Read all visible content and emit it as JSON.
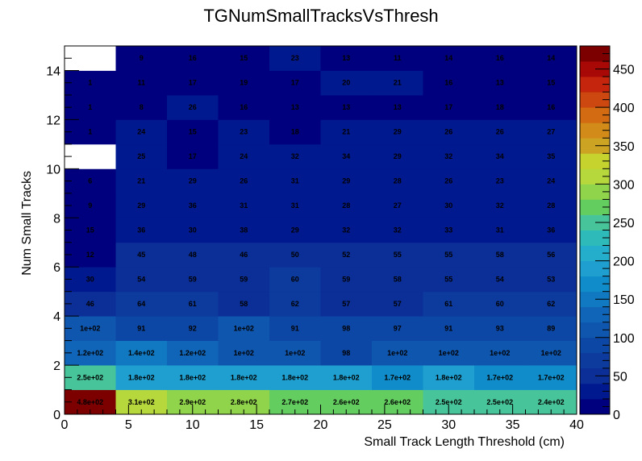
{
  "chart_data": {
    "type": "heatmap",
    "title": "TGNumSmallTracksVsThresh",
    "xlabel": "Small Track Length Threshold (cm)",
    "ylabel": "Num Small Tracks",
    "xlim": [
      0,
      40
    ],
    "ylim": [
      0,
      15
    ],
    "x_bin_edges": [
      0,
      4,
      8,
      12,
      16,
      20,
      24,
      28,
      32,
      36,
      40
    ],
    "y_bin_width": 1,
    "x_ticks": [
      0,
      5,
      10,
      15,
      20,
      25,
      30,
      35,
      40
    ],
    "y_ticks": [
      0,
      2,
      4,
      6,
      8,
      10,
      12,
      14
    ],
    "zlim": [
      0,
      480
    ],
    "z_ticks": [
      0,
      50,
      100,
      150,
      200,
      250,
      300,
      350,
      400,
      450
    ],
    "values": [
      [
        480,
        310,
        290,
        280,
        270,
        260,
        260,
        250,
        250,
        240
      ],
      [
        250,
        180,
        180,
        180,
        180,
        180,
        170,
        180,
        170,
        170
      ],
      [
        120,
        140,
        120,
        100,
        100,
        98,
        100,
        100,
        100,
        100
      ],
      [
        100,
        91,
        92,
        100,
        91,
        98,
        97,
        91,
        93,
        89
      ],
      [
        46,
        64,
        61,
        58,
        62,
        57,
        57,
        61,
        60,
        62
      ],
      [
        30,
        54,
        59,
        59,
        60,
        59,
        58,
        55,
        54,
        53
      ],
      [
        12,
        45,
        48,
        46,
        50,
        52,
        55,
        55,
        58,
        56
      ],
      [
        15,
        36,
        30,
        38,
        29,
        32,
        32,
        33,
        31,
        36
      ],
      [
        9,
        29,
        36,
        31,
        31,
        28,
        27,
        30,
        32,
        28
      ],
      [
        6,
        21,
        29,
        26,
        31,
        29,
        28,
        26,
        23,
        24
      ],
      [
        0,
        25,
        17,
        24,
        32,
        34,
        29,
        32,
        34,
        35
      ],
      [
        1,
        24,
        15,
        23,
        18,
        21,
        29,
        26,
        26,
        27
      ],
      [
        1,
        8,
        26,
        16,
        13,
        13,
        13,
        17,
        18,
        16
      ],
      [
        1,
        11,
        17,
        19,
        17,
        20,
        21,
        16,
        13,
        15
      ],
      [
        0,
        9,
        16,
        15,
        23,
        13,
        11,
        14,
        16,
        14
      ]
    ],
    "labels": [
      [
        "4.8e+02",
        "3.1e+02",
        "2.9e+02",
        "2.8e+02",
        "2.7e+02",
        "2.6e+02",
        "2.6e+02",
        "2.5e+02",
        "2.5e+02",
        "2.4e+02"
      ],
      [
        "2.5e+02",
        "1.8e+02",
        "1.8e+02",
        "1.8e+02",
        "1.8e+02",
        "1.8e+02",
        "1.7e+02",
        "1.8e+02",
        "1.7e+02",
        "1.7e+02"
      ],
      [
        "1.2e+02",
        "1.4e+02",
        "1.2e+02",
        "1e+02",
        "1e+02",
        "98",
        "1e+02",
        "1e+02",
        "1e+02",
        "1e+02"
      ],
      [
        "1e+02",
        "91",
        "92",
        "1e+02",
        "91",
        "98",
        "97",
        "91",
        "93",
        "89"
      ],
      [
        "46",
        "64",
        "61",
        "58",
        "62",
        "57",
        "57",
        "61",
        "60",
        "62"
      ],
      [
        "30",
        "54",
        "59",
        "59",
        "60",
        "59",
        "58",
        "55",
        "54",
        "53"
      ],
      [
        "12",
        "45",
        "48",
        "46",
        "50",
        "52",
        "55",
        "55",
        "58",
        "56"
      ],
      [
        "15",
        "36",
        "30",
        "38",
        "29",
        "32",
        "32",
        "33",
        "31",
        "36"
      ],
      [
        "9",
        "29",
        "36",
        "31",
        "31",
        "28",
        "27",
        "30",
        "32",
        "28"
      ],
      [
        "6",
        "21",
        "29",
        "26",
        "31",
        "29",
        "28",
        "26",
        "23",
        "24"
      ],
      [
        "",
        "25",
        "17",
        "24",
        "32",
        "34",
        "29",
        "32",
        "34",
        "35"
      ],
      [
        "1",
        "24",
        "15",
        "23",
        "18",
        "21",
        "29",
        "26",
        "26",
        "27"
      ],
      [
        "1",
        "8",
        "26",
        "16",
        "13",
        "13",
        "13",
        "17",
        "18",
        "16"
      ],
      [
        "1",
        "11",
        "17",
        "19",
        "17",
        "20",
        "21",
        "16",
        "13",
        "15"
      ],
      [
        "",
        "9",
        "16",
        "15",
        "23",
        "13",
        "11",
        "14",
        "16",
        "14"
      ]
    ],
    "palette": [
      "#00007e",
      "#00198f",
      "#0b2e97",
      "#0c3a9d",
      "#0d47a5",
      "#0f56af",
      "#1065b8",
      "#1079c2",
      "#108cca",
      "#1e9fcf",
      "#24aecb",
      "#2ebab8",
      "#47c49a",
      "#64cd60",
      "#8fd44a",
      "#b6d83c",
      "#c6d22d",
      "#cca323",
      "#d28b18",
      "#d36b12",
      "#cd4810",
      "#c4250c",
      "#a80806",
      "#7d0000"
    ],
    "empty_color": "#ffffff",
    "grid": false
  }
}
